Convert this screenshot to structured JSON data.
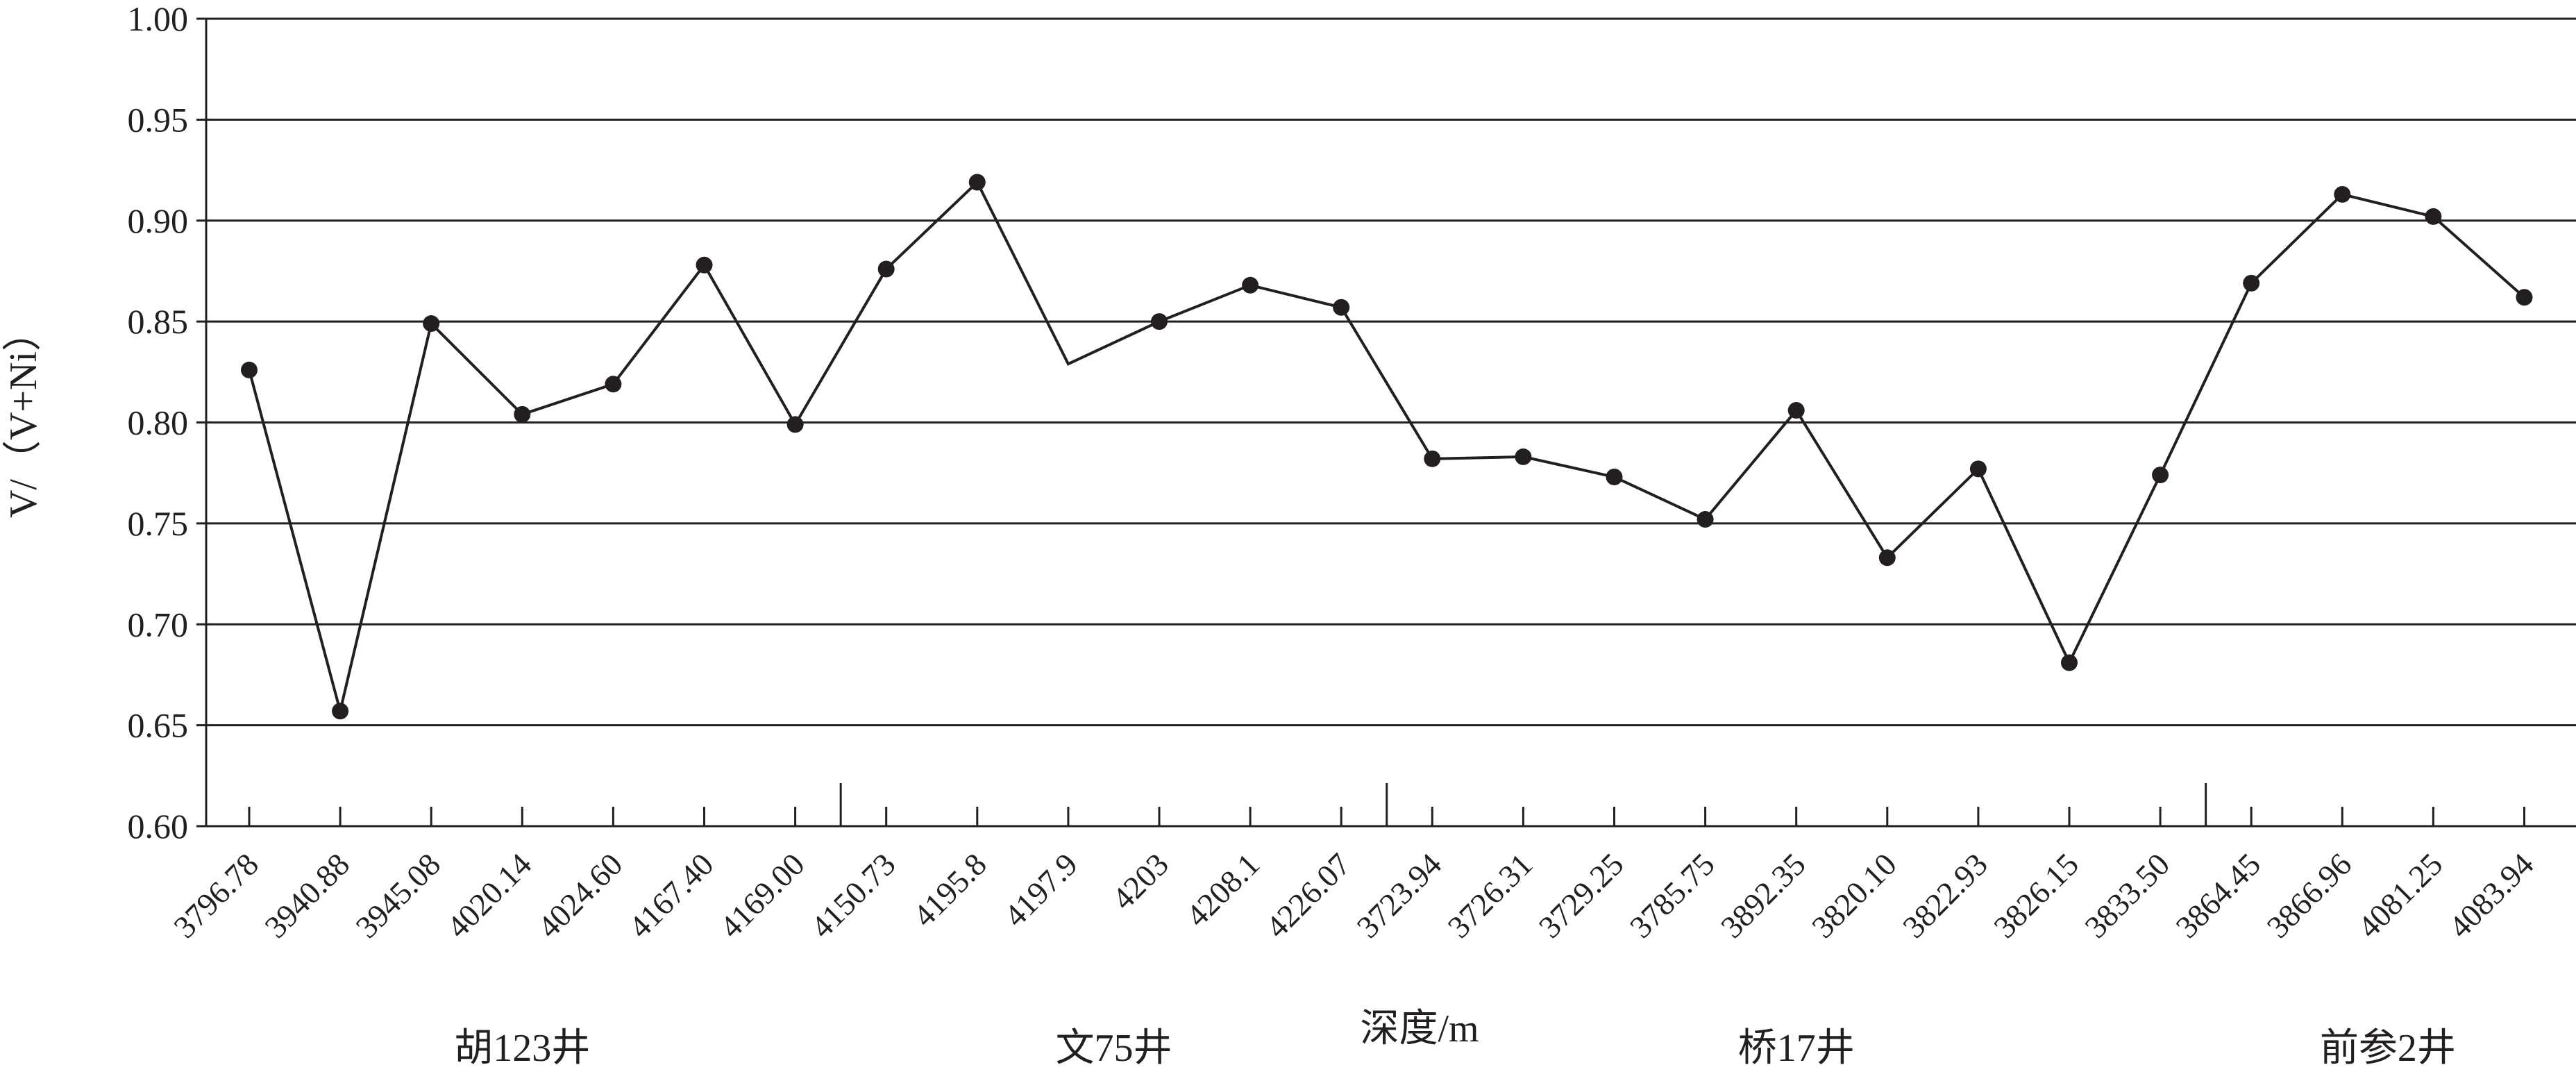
{
  "chart_data": {
    "type": "line",
    "ylabel": "V/（V+Ni）",
    "xlabel": "深度/m",
    "ylim": [
      0.6,
      1.0
    ],
    "yticks": [
      "0.60",
      "0.65",
      "0.70",
      "0.75",
      "0.80",
      "0.85",
      "0.90",
      "0.95",
      "1.00"
    ],
    "grid": "horizontal",
    "categories": [
      "3796.78",
      "3940.88",
      "3945.08",
      "4020.14",
      "4024.60",
      "4167.40",
      "4169.00",
      "4150.73",
      "4195.8",
      "4197.9",
      "4203",
      "4208.1",
      "4226.07",
      "3723.94",
      "3726.31",
      "3729.25",
      "3785.75",
      "3892.35",
      "3820.10",
      "3822.93",
      "3826.15",
      "3833.50",
      "3864.45",
      "3866.96",
      "4081.25",
      "4083.94"
    ],
    "series": [
      {
        "color": "#231f20",
        "segments": [
          {
            "start": 0,
            "values": [
              0.826,
              0.657
            ]
          },
          {
            "start": 1,
            "values": [
              0.657,
              0.849,
              0.804,
              0.819,
              0.878,
              0.799,
              0.876,
              0.919,
              0.829,
              0.85,
              0.868,
              0.857,
              0.782,
              0.783,
              0.773,
              0.752,
              0.806,
              0.733,
              0.777,
              0.681,
              0.774,
              0.869,
              0.913,
              0.902,
              0.862
            ]
          }
        ],
        "markers": [
          0.826,
          0.657,
          0.849,
          0.804,
          0.819,
          0.878,
          0.799,
          0.876,
          0.919,
          null,
          0.85,
          0.868,
          0.857,
          0.782,
          0.783,
          0.773,
          0.752,
          0.806,
          0.733,
          0.777,
          0.681,
          0.774,
          0.869,
          0.913,
          0.902,
          0.862
        ]
      }
    ],
    "groups": [
      {
        "label": "胡123井",
        "from": 0,
        "to": 6
      },
      {
        "label": "文75井",
        "from": 7,
        "to": 12
      },
      {
        "label": "桥17井",
        "from": 13,
        "to": 21
      },
      {
        "label": "前参2井",
        "from": 22,
        "to": 25
      }
    ]
  }
}
